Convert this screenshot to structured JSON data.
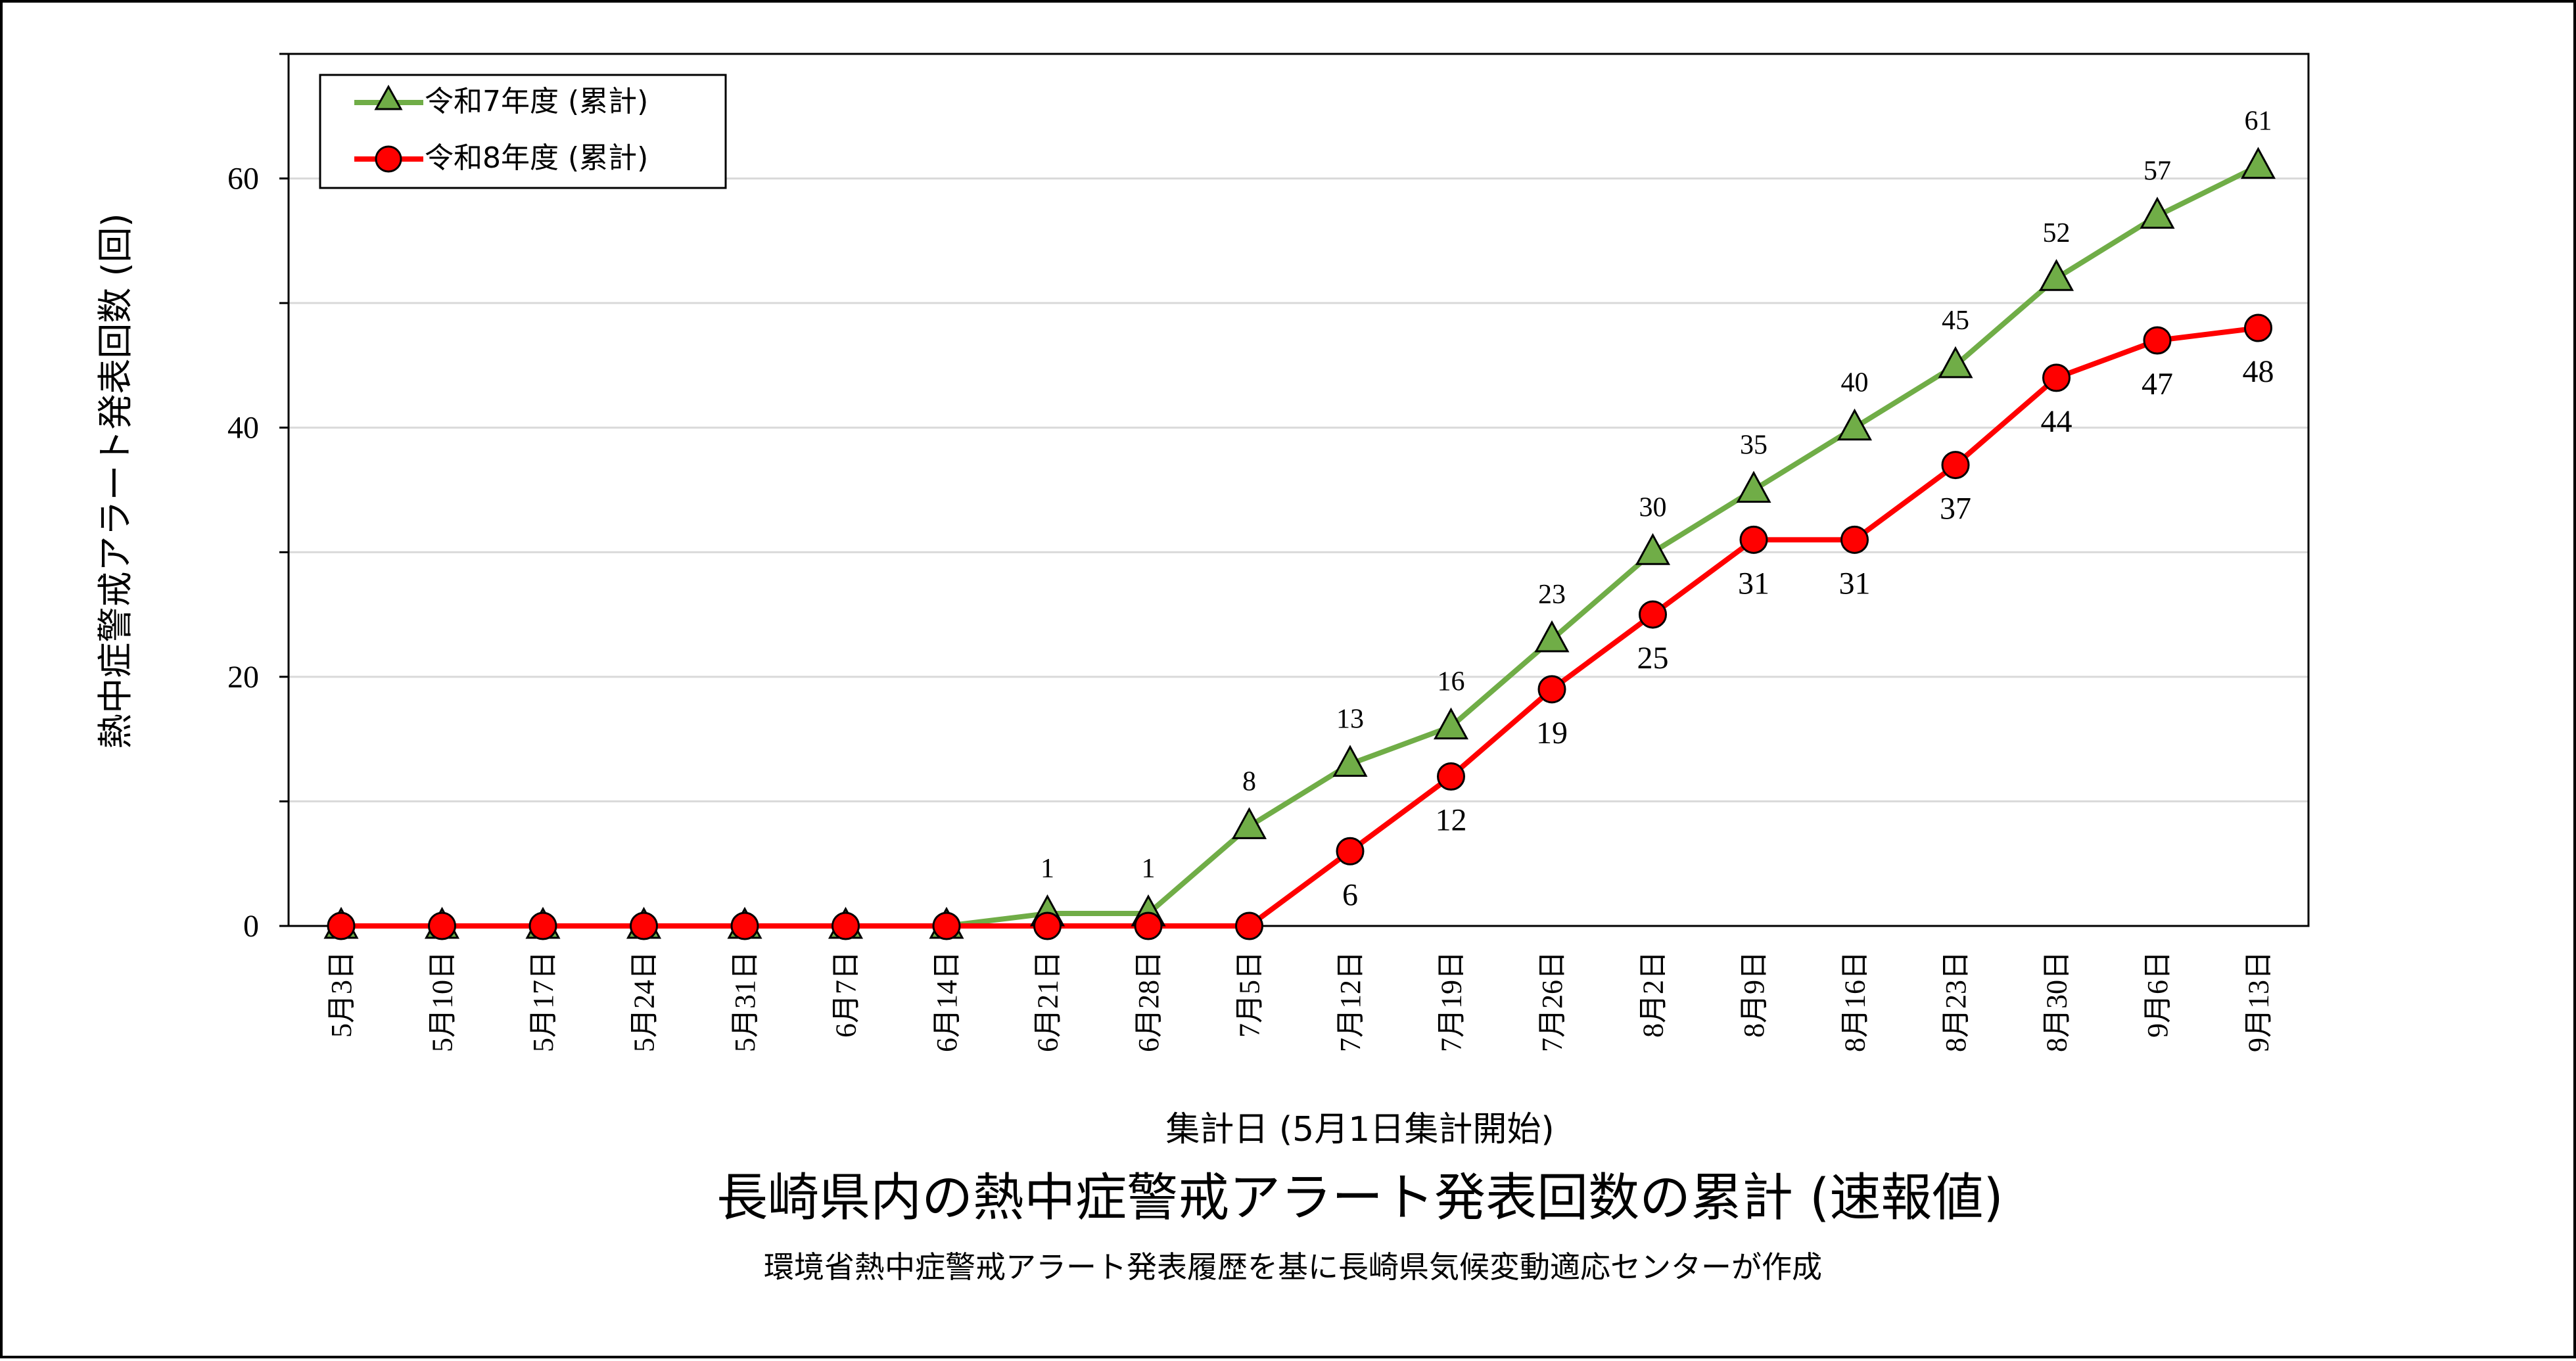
{
  "chart_data": {
    "type": "line",
    "title": "長崎県内の熱中症警戒アラート発表回数の累計 (速報値)",
    "subtitle": "環境省熱中症警戒アラート発表履歴を基に長崎県気候変動適応センターが作成",
    "xlabel": "集計日 (5月1日集計開始)",
    "ylabel": "熱中症警戒アラート発表回数 (回)",
    "ylim": [
      0,
      70
    ],
    "y_ticks": [
      0,
      20,
      40,
      60
    ],
    "grid": true,
    "legend_position": "top-left",
    "categories": [
      "5月3日",
      "5月10日",
      "5月17日",
      "5月24日",
      "5月31日",
      "6月7日",
      "6月14日",
      "6月21日",
      "6月28日",
      "7月5日",
      "7月12日",
      "7月19日",
      "7月26日",
      "8月2日",
      "8月9日",
      "8月16日",
      "8月23日",
      "8月30日",
      "9月6日",
      "9月13日"
    ],
    "series": [
      {
        "name": "令和7年度 (累計)",
        "marker": "triangle",
        "color": "#70AD47",
        "values": [
          0,
          0,
          0,
          0,
          0,
          0,
          0,
          1,
          1,
          8,
          13,
          16,
          23,
          30,
          35,
          40,
          45,
          52,
          57,
          61
        ],
        "data_labels": [
          "",
          "",
          "",
          "",
          "",
          "",
          "",
          "1",
          "1",
          "8",
          "13",
          "16",
          "23",
          "30",
          "35",
          "40",
          "45",
          "52",
          "57",
          "61"
        ],
        "label_position": "above"
      },
      {
        "name": "令和8年度 (累計)",
        "marker": "circle",
        "color": "#FF0000",
        "values": [
          0,
          0,
          0,
          0,
          0,
          0,
          0,
          0,
          0,
          0,
          6,
          12,
          19,
          25,
          31,
          31,
          37,
          44,
          47,
          48
        ],
        "data_labels": [
          "",
          "",
          "",
          "",
          "",
          "",
          "",
          "",
          "",
          "",
          "6",
          "12",
          "19",
          "25",
          "31",
          "31",
          "37",
          "44",
          "47",
          "48"
        ],
        "label_position": "below"
      }
    ]
  }
}
